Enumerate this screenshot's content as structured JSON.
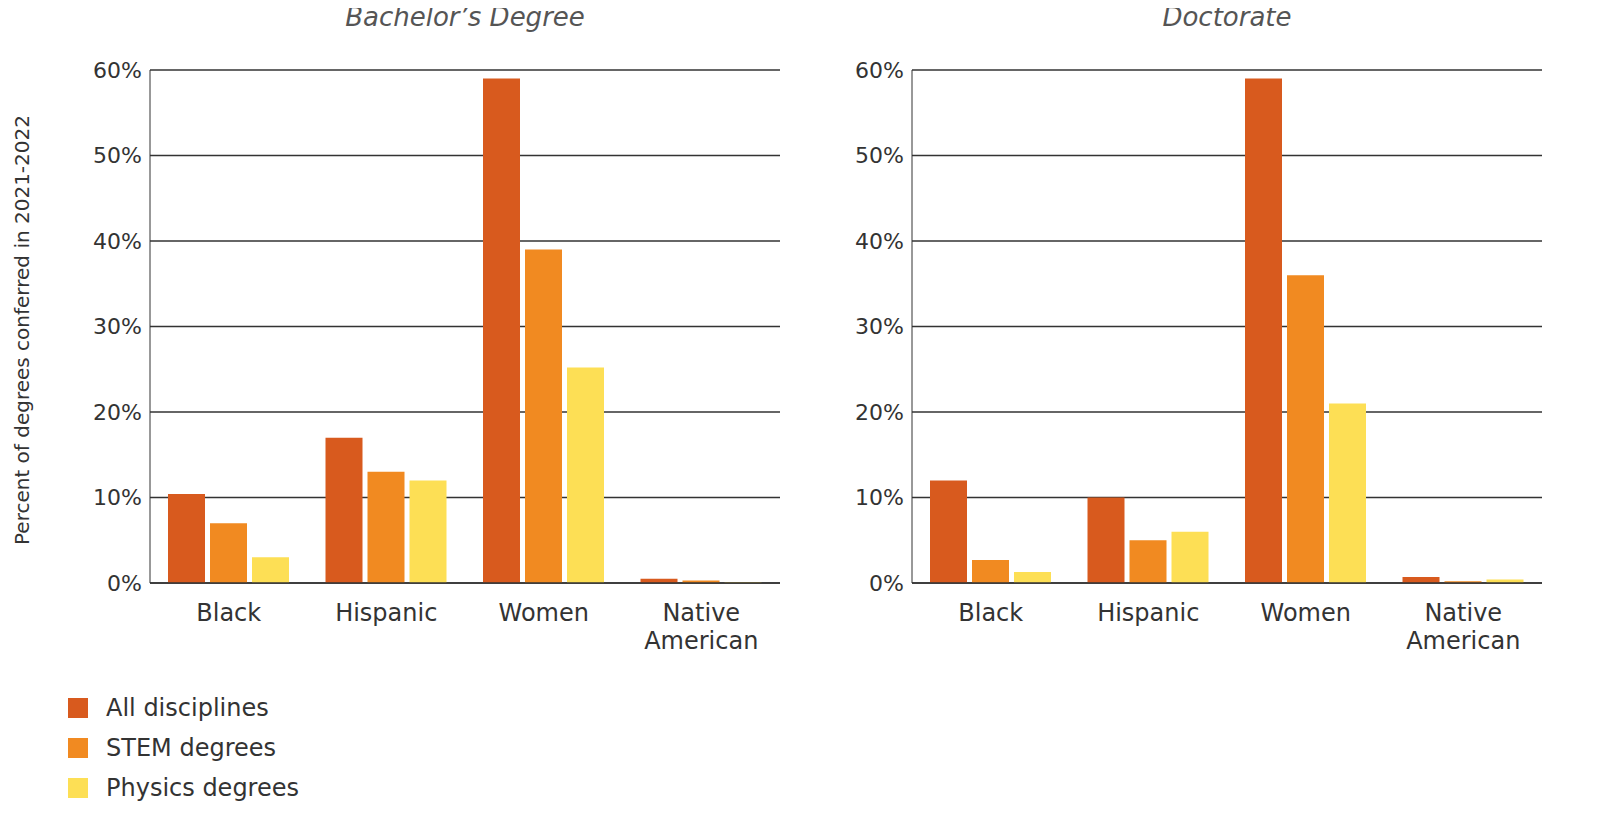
{
  "chart_data": [
    {
      "type": "bar",
      "title": "Bachelor’s Degree",
      "y_label": "Percent of degrees conferred in 2021-2022",
      "categories": [
        "Black",
        "Hispanic",
        "Women",
        "Native American"
      ],
      "series": [
        {
          "name": "All disciplines",
          "color": "#d85a1e",
          "values": [
            10.4,
            17,
            59,
            0.5
          ]
        },
        {
          "name": "STEM degrees",
          "color": "#f18a21",
          "values": [
            7,
            13,
            39,
            0.3
          ]
        },
        {
          "name": "Physics degrees",
          "color": "#fddf55",
          "values": [
            3,
            12,
            25.2,
            0.1
          ]
        }
      ],
      "ylim": [
        0,
        60
      ],
      "yticks": [
        {
          "value": 0,
          "label": "0%"
        },
        {
          "value": 10,
          "label": "10%"
        },
        {
          "value": 20,
          "label": "20%"
        },
        {
          "value": 30,
          "label": "30%"
        },
        {
          "value": 40,
          "label": "40%"
        },
        {
          "value": 50,
          "label": "50%"
        },
        {
          "value": 60,
          "label": "60%"
        }
      ],
      "grid": true,
      "legend": "lower left"
    },
    {
      "type": "bar",
      "title": "Doctorate",
      "categories": [
        "Black",
        "Hispanic",
        "Women",
        "Native American"
      ],
      "series": [
        {
          "name": "All disciplines",
          "color": "#d85a1e",
          "values": [
            12,
            10,
            59,
            0.7
          ]
        },
        {
          "name": "STEM degrees",
          "color": "#f18a21",
          "values": [
            2.7,
            5,
            36,
            0.2
          ]
        },
        {
          "name": "Physics degrees",
          "color": "#fddf55",
          "values": [
            1.3,
            6,
            21,
            0.4
          ]
        }
      ],
      "ylim": [
        0,
        60
      ],
      "yticks": [
        {
          "value": 0,
          "label": "0%"
        },
        {
          "value": 10,
          "label": "10%"
        },
        {
          "value": 20,
          "label": "20%"
        },
        {
          "value": 30,
          "label": "30%"
        },
        {
          "value": 40,
          "label": "40%"
        },
        {
          "value": 50,
          "label": "50%"
        },
        {
          "value": 60,
          "label": "60%"
        }
      ],
      "grid": true
    }
  ]
}
